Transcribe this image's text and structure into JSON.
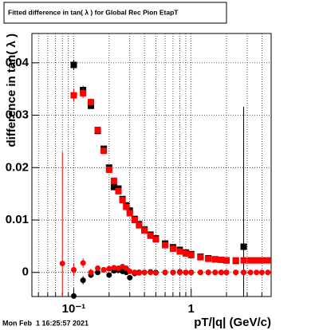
{
  "chart_data": {
    "type": "scatter",
    "title": "Fitted difference in tan( λ ) for Global Rec Pion EtapT",
    "x_label": "pT/|q| (GeV/c)",
    "y_label": "difference in tan( λ )",
    "timestamp": "Mon Feb  1 16:25:57 2021",
    "log_x": true,
    "grid": true,
    "xlim": [
      0.044,
      4.8
    ],
    "ylim": [
      -0.0046,
      0.0456
    ],
    "xticks": [
      {
        "value": 0.1,
        "label": "10⁻¹"
      },
      1
    ],
    "xminorticks": [
      0.05,
      0.06,
      0.07,
      0.08,
      0.09,
      0.2,
      0.3,
      0.4,
      0.5,
      0.6,
      0.7,
      0.8,
      0.9,
      2,
      3,
      4
    ],
    "yticks": [
      0,
      0.01,
      0.02,
      0.03,
      0.04
    ],
    "series": [
      {
        "color": "#000000",
        "marker": "square",
        "x": [
          0.1,
          0.12,
          0.14,
          0.16,
          0.18,
          0.2,
          0.22,
          0.24,
          0.26,
          0.28,
          0.3,
          0.33,
          0.36,
          0.4,
          0.45,
          0.5,
          0.6,
          0.7,
          0.8,
          0.9,
          1.0,
          1.2,
          1.4,
          1.6,
          1.8,
          2.0,
          2.4,
          2.8
        ],
        "values": [
          0.0396,
          0.0348,
          0.0318,
          0.027,
          0.0236,
          0.02,
          0.0163,
          0.016,
          0.014,
          0.0128,
          0.0118,
          0.0102,
          0.0092,
          0.0082,
          0.0072,
          0.0065,
          0.0055,
          0.0048,
          0.0043,
          0.0038,
          0.0035,
          0.003,
          0.0027,
          0.0025,
          0.0024,
          0.0023,
          0.0022,
          0.0049
        ],
        "errors": [
          0.001,
          0.0008,
          0.0006,
          0.0005,
          0.0004,
          0.0004,
          0.0003,
          0.0003,
          0.0003,
          0.0003,
          0.0002,
          0.0002,
          0.0002,
          0.0002,
          0.0002,
          0.0002,
          0.0002,
          0.0001,
          0.0001,
          0.0001,
          0.0001,
          0.0001,
          0.0001,
          0.0001,
          0.0001,
          0.0001,
          0.0002,
          0.0267
        ]
      },
      {
        "color": "#ff0000",
        "marker": "square",
        "x": [
          0.1,
          0.12,
          0.14,
          0.16,
          0.18,
          0.2,
          0.22,
          0.24,
          0.26,
          0.28,
          0.3,
          0.33,
          0.36,
          0.4,
          0.45,
          0.5,
          0.6,
          0.7,
          0.8,
          0.9,
          1.0,
          1.2,
          1.4,
          1.6,
          1.8,
          2.0,
          2.4,
          2.8,
          3.2,
          3.6,
          4.0,
          4.5
        ],
        "values": [
          0.0338,
          0.0342,
          0.0325,
          0.0272,
          0.0232,
          0.0196,
          0.0175,
          0.0155,
          0.0138,
          0.0125,
          0.0113,
          0.01,
          0.009,
          0.008,
          0.007,
          0.0063,
          0.0052,
          0.0045,
          0.004,
          0.0036,
          0.0033,
          0.0029,
          0.0026,
          0.0025,
          0.0024,
          0.0023,
          0.0023,
          0.0023,
          0.0023,
          0.0023,
          0.0023,
          0.0023
        ],
        "errors": [
          0.0012,
          0.0009,
          0.0007,
          0.0005,
          0.0004,
          0.0004,
          0.0003,
          0.0003,
          0.0003,
          0.0003,
          0.0002,
          0.0002,
          0.0002,
          0.0002,
          0.0002,
          0.0002,
          0.0002,
          0.0001,
          0.0001,
          0.0001,
          0.0001,
          0.0001,
          0.0001,
          0.0001,
          0.0001,
          0.0001,
          0.0001,
          0.0001,
          0.0001,
          0.0001,
          0.0001,
          0.0001
        ]
      },
      {
        "color": "#000000",
        "marker": "circle",
        "x": [
          0.1,
          0.12,
          0.14,
          0.16,
          0.18,
          0.2,
          0.22,
          0.24,
          0.26,
          0.28,
          0.3,
          0.33,
          0.36,
          0.4,
          0.45,
          0.5,
          0.6,
          0.7,
          0.8,
          0.9,
          1.0,
          1.2,
          1.4,
          1.6,
          1.8,
          2.0,
          2.4,
          2.8
        ],
        "values": [
          -0.0045,
          -0.0015,
          -0.0005,
          0.0,
          0.0005,
          -0.0005,
          0.0003,
          0.0004,
          0.0002,
          0.0,
          -0.001,
          -0.0002,
          0.0,
          0.0,
          0.0001,
          0.0,
          0.0,
          0.0,
          0.0001,
          0.0,
          0.0,
          0.0,
          0.0,
          0.0,
          0.0,
          0.0,
          0.0,
          0.0
        ],
        "errors": [
          0.0015,
          0.0008,
          0.0006,
          0.0005,
          0.0004,
          0.0004,
          0.0003,
          0.0003,
          0.0003,
          0.0003,
          0.0002,
          0.0002,
          0.0002,
          0.0002,
          0.0002,
          0.0002,
          0.0002,
          0.0001,
          0.0001,
          0.0001,
          0.0001,
          0.0001,
          0.0001,
          0.0001,
          0.0001,
          0.0001,
          0.0002,
          0.0003
        ]
      },
      {
        "color": "#ff0000",
        "marker": "circle",
        "x": [
          0.08,
          0.1,
          0.12,
          0.14,
          0.16,
          0.18,
          0.2,
          0.22,
          0.24,
          0.26,
          0.28,
          0.3,
          0.33,
          0.36,
          0.4,
          0.45,
          0.5,
          0.6,
          0.7,
          0.8,
          0.9,
          1.0,
          1.2,
          1.4,
          1.6,
          1.8,
          2.0,
          2.4,
          2.8,
          3.2,
          3.6,
          4.0,
          4.5
        ],
        "values": [
          0.0017,
          0.0005,
          0.0018,
          0.0,
          0.0008,
          0.0005,
          0.0007,
          0.0009,
          0.0008,
          0.0011,
          0.0008,
          0.0002,
          0.0,
          -0.0001,
          0.0,
          0.0,
          -0.0001,
          0.0,
          0.0,
          0.0,
          0.0,
          0.0,
          0.0,
          0.0,
          0.0,
          0.0,
          0.0,
          0.0,
          0.0,
          0.0,
          0.0,
          0.0,
          0.0
        ],
        "errors": [
          0.0213,
          0.0012,
          0.0009,
          0.0007,
          0.0005,
          0.0004,
          0.0004,
          0.0003,
          0.0003,
          0.0003,
          0.0003,
          0.0002,
          0.0002,
          0.0002,
          0.0002,
          0.0002,
          0.0002,
          0.0002,
          0.0001,
          0.0001,
          0.0001,
          0.0001,
          0.0001,
          0.0001,
          0.0001,
          0.0001,
          0.0001,
          0.0001,
          0.0001,
          0.0001,
          0.0001,
          0.0001,
          0.0001
        ]
      }
    ]
  }
}
